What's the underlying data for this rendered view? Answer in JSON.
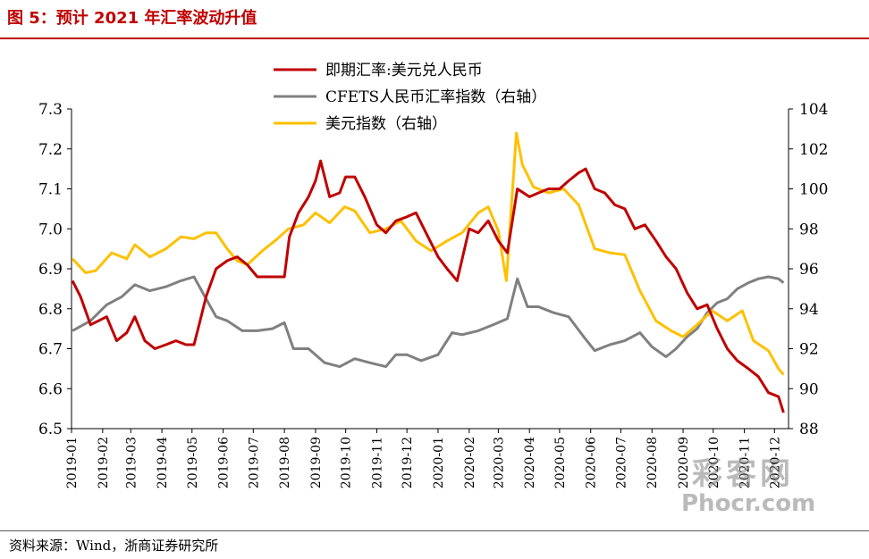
{
  "figure_title": "图 5：预计 2021 年汇率波动升值",
  "source": "资料来源：Wind，浙商证券研究所",
  "watermark": {
    "logo": "彩客网",
    "url": "Phocr.com"
  },
  "colors": {
    "title": "#c00000",
    "usdcny": "#c00000",
    "cfets": "#808080",
    "dxy": "#ffc000"
  },
  "chart_data": {
    "type": "line",
    "categories": [
      "2019-01",
      "2019-02",
      "2019-03",
      "2019-04",
      "2019-05",
      "2019-06",
      "2019-07",
      "2019-08",
      "2019-09",
      "2019-10",
      "2019-11",
      "2019-12",
      "2020-01",
      "2020-02",
      "2020-03",
      "2020-04",
      "2020-05",
      "2020-06",
      "2020-07",
      "2020-08",
      "2020-09",
      "2020-10",
      "2020-11",
      "2020-12"
    ],
    "y_left": {
      "ylim": [
        6.5,
        7.3
      ],
      "ticks": [
        "6.5",
        "6.6",
        "6.7",
        "6.8",
        "6.9",
        "7.0",
        "7.1",
        "7.2",
        "7.3"
      ]
    },
    "y_right": {
      "ylim": [
        88,
        104
      ],
      "ticks": [
        "88",
        "90",
        "92",
        "94",
        "96",
        "98",
        "100",
        "102",
        "104"
      ]
    },
    "legend_position": "top-center",
    "grid": false,
    "series": [
      {
        "name": "即期汇率:美元兑人民币",
        "axis": "left",
        "color": "#c00000",
        "x": [
          "2019-01-02",
          "2019-01-10",
          "2019-01-20",
          "2019-02-05",
          "2019-02-15",
          "2019-02-25",
          "2019-03-05",
          "2019-03-15",
          "2019-03-25",
          "2019-04-05",
          "2019-04-15",
          "2019-04-25",
          "2019-05-03",
          "2019-05-08",
          "2019-05-15",
          "2019-05-25",
          "2019-06-05",
          "2019-06-15",
          "2019-06-25",
          "2019-07-05",
          "2019-07-15",
          "2019-07-25",
          "2019-08-01",
          "2019-08-06",
          "2019-08-15",
          "2019-08-25",
          "2019-09-01",
          "2019-09-06",
          "2019-09-15",
          "2019-09-25",
          "2019-10-01",
          "2019-10-10",
          "2019-10-20",
          "2019-11-01",
          "2019-11-10",
          "2019-11-20",
          "2019-12-01",
          "2019-12-10",
          "2019-12-20",
          "2020-01-01",
          "2020-01-10",
          "2020-01-20",
          "2020-02-01",
          "2020-02-10",
          "2020-02-20",
          "2020-03-01",
          "2020-03-10",
          "2020-03-20",
          "2020-04-01",
          "2020-04-10",
          "2020-04-20",
          "2020-05-01",
          "2020-05-10",
          "2020-05-20",
          "2020-05-27",
          "2020-06-05",
          "2020-06-15",
          "2020-06-25",
          "2020-07-05",
          "2020-07-15",
          "2020-07-25",
          "2020-08-05",
          "2020-08-15",
          "2020-08-25",
          "2020-09-05",
          "2020-09-15",
          "2020-09-25",
          "2020-10-05",
          "2020-10-15",
          "2020-10-25",
          "2020-11-05",
          "2020-11-15",
          "2020-11-25",
          "2020-12-05",
          "2020-12-10"
        ],
        "values": [
          6.87,
          6.83,
          6.76,
          6.78,
          6.72,
          6.74,
          6.78,
          6.72,
          6.7,
          6.71,
          6.72,
          6.71,
          6.71,
          6.76,
          6.83,
          6.9,
          6.92,
          6.93,
          6.91,
          6.88,
          6.88,
          6.88,
          6.88,
          6.98,
          7.04,
          7.08,
          7.12,
          7.17,
          7.08,
          7.09,
          7.13,
          7.13,
          7.08,
          7.01,
          6.99,
          7.02,
          7.03,
          7.04,
          6.99,
          6.93,
          6.9,
          6.87,
          7.0,
          6.99,
          7.02,
          6.97,
          6.94,
          7.1,
          7.08,
          7.09,
          7.1,
          7.1,
          7.12,
          7.14,
          7.15,
          7.1,
          7.09,
          7.06,
          7.05,
          7.0,
          7.01,
          6.97,
          6.93,
          6.9,
          6.84,
          6.8,
          6.81,
          6.75,
          6.7,
          6.67,
          6.65,
          6.63,
          6.59,
          6.58,
          6.54
        ]
      },
      {
        "name": "CFETS人民币汇率指数（右轴）",
        "axis": "right",
        "color": "#808080",
        "x": [
          "2019-01-02",
          "2019-01-20",
          "2019-02-05",
          "2019-02-20",
          "2019-03-05",
          "2019-03-20",
          "2019-04-05",
          "2019-04-20",
          "2019-05-03",
          "2019-05-15",
          "2019-05-25",
          "2019-06-05",
          "2019-06-20",
          "2019-07-05",
          "2019-07-20",
          "2019-08-01",
          "2019-08-10",
          "2019-08-25",
          "2019-09-10",
          "2019-09-25",
          "2019-10-10",
          "2019-10-25",
          "2019-11-10",
          "2019-11-20",
          "2019-12-01",
          "2019-12-15",
          "2020-01-01",
          "2020-01-15",
          "2020-01-25",
          "2020-02-10",
          "2020-02-25",
          "2020-03-10",
          "2020-03-20",
          "2020-03-30",
          "2020-04-10",
          "2020-04-25",
          "2020-05-10",
          "2020-05-25",
          "2020-06-05",
          "2020-06-20",
          "2020-07-05",
          "2020-07-20",
          "2020-08-01",
          "2020-08-15",
          "2020-08-25",
          "2020-09-05",
          "2020-09-15",
          "2020-09-25",
          "2020-10-05",
          "2020-10-15",
          "2020-10-25",
          "2020-11-05",
          "2020-11-15",
          "2020-11-25",
          "2020-12-05",
          "2020-12-10"
        ],
        "values": [
          92.9,
          93.4,
          94.2,
          94.6,
          95.2,
          94.9,
          95.1,
          95.4,
          95.6,
          94.5,
          93.6,
          93.4,
          92.9,
          92.9,
          93.0,
          93.3,
          92.0,
          92.0,
          91.3,
          91.1,
          91.5,
          91.3,
          91.1,
          91.7,
          91.7,
          91.4,
          91.7,
          92.8,
          92.7,
          92.9,
          93.2,
          93.5,
          95.5,
          94.1,
          94.1,
          93.8,
          93.6,
          92.6,
          91.9,
          92.2,
          92.4,
          92.8,
          92.1,
          91.6,
          92.0,
          92.6,
          93.0,
          93.8,
          94.3,
          94.5,
          95.0,
          95.3,
          95.5,
          95.6,
          95.5,
          95.3
        ]
      },
      {
        "name": "美元指数（右轴）",
        "axis": "right",
        "color": "#ffc000",
        "x": [
          "2019-01-02",
          "2019-01-15",
          "2019-01-25",
          "2019-02-10",
          "2019-02-25",
          "2019-03-05",
          "2019-03-20",
          "2019-04-05",
          "2019-04-20",
          "2019-05-03",
          "2019-05-15",
          "2019-05-25",
          "2019-06-05",
          "2019-06-15",
          "2019-06-25",
          "2019-07-10",
          "2019-07-25",
          "2019-08-05",
          "2019-08-20",
          "2019-09-01",
          "2019-09-15",
          "2019-09-30",
          "2019-10-10",
          "2019-10-25",
          "2019-11-10",
          "2019-11-25",
          "2019-12-10",
          "2019-12-25",
          "2020-01-10",
          "2020-01-25",
          "2020-02-10",
          "2020-02-20",
          "2020-03-01",
          "2020-03-09",
          "2020-03-19",
          "2020-03-25",
          "2020-04-05",
          "2020-04-20",
          "2020-05-05",
          "2020-05-20",
          "2020-06-05",
          "2020-06-20",
          "2020-07-05",
          "2020-07-20",
          "2020-08-05",
          "2020-08-20",
          "2020-09-01",
          "2020-09-15",
          "2020-09-30",
          "2020-10-15",
          "2020-10-30",
          "2020-11-10",
          "2020-11-25",
          "2020-12-05",
          "2020-12-10"
        ],
        "values": [
          96.5,
          95.8,
          95.9,
          96.8,
          96.5,
          97.2,
          96.6,
          97.0,
          97.6,
          97.5,
          97.8,
          97.8,
          97.0,
          96.4,
          96.2,
          96.9,
          97.5,
          98.0,
          98.2,
          98.8,
          98.3,
          99.1,
          98.9,
          97.8,
          98.0,
          98.4,
          97.4,
          96.9,
          97.4,
          97.8,
          98.8,
          99.1,
          97.9,
          95.4,
          102.8,
          101.2,
          100.1,
          99.8,
          100.0,
          99.2,
          97.0,
          96.8,
          96.7,
          94.9,
          93.4,
          92.9,
          92.6,
          93.2,
          93.9,
          93.4,
          93.9,
          92.4,
          91.9,
          91.0,
          90.7
        ]
      }
    ]
  }
}
